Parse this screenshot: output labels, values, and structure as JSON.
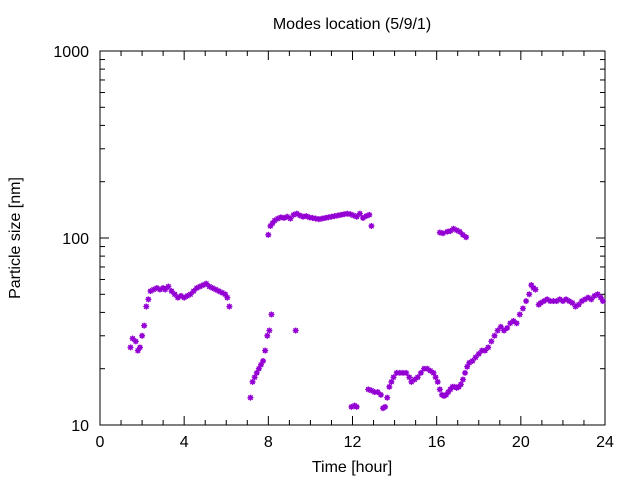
{
  "chart_data": {
    "type": "scatter",
    "title": "Modes location (5/9/1)",
    "xlabel": "Time [hour]",
    "ylabel": "Particle size [nm]",
    "xlim": [
      0,
      24
    ],
    "ylim": [
      10,
      1000
    ],
    "yscale": "log",
    "x_ticks": [
      0,
      4,
      8,
      12,
      16,
      20,
      24
    ],
    "x_tick_labels": [
      "0",
      "4",
      "8",
      "12",
      "16",
      "20",
      "24"
    ],
    "y_ticks": [
      10,
      100,
      1000
    ],
    "y_tick_labels": [
      "10",
      "100",
      "1000"
    ],
    "grid": false,
    "legend": "none",
    "marker_color": "#9400d3",
    "series": [
      {
        "points": [
          [
            1.45,
            26
          ],
          [
            1.55,
            29
          ],
          [
            1.7,
            28
          ],
          [
            1.8,
            25
          ],
          [
            1.9,
            26
          ],
          [
            2.0,
            30
          ],
          [
            2.1,
            34
          ],
          [
            2.2,
            43
          ],
          [
            2.3,
            47
          ],
          [
            2.4,
            52
          ],
          [
            2.55,
            53
          ],
          [
            2.7,
            54
          ],
          [
            2.85,
            53
          ],
          [
            3.0,
            54
          ],
          [
            3.1,
            53
          ],
          [
            3.25,
            55
          ],
          [
            3.4,
            52
          ],
          [
            3.55,
            50
          ],
          [
            3.7,
            48
          ],
          [
            3.85,
            49
          ],
          [
            4.0,
            48
          ],
          [
            4.15,
            49
          ],
          [
            4.3,
            50
          ],
          [
            4.45,
            52
          ],
          [
            4.6,
            54
          ],
          [
            4.75,
            55
          ],
          [
            4.9,
            56
          ],
          [
            5.05,
            57
          ],
          [
            5.2,
            55
          ],
          [
            5.35,
            54
          ],
          [
            5.5,
            53
          ],
          [
            5.65,
            52
          ],
          [
            5.8,
            51
          ],
          [
            5.95,
            50
          ],
          [
            6.05,
            48
          ],
          [
            6.15,
            43
          ],
          [
            7.15,
            14
          ],
          [
            7.25,
            17
          ],
          [
            7.35,
            18
          ],
          [
            7.45,
            19
          ],
          [
            7.55,
            20
          ],
          [
            7.65,
            21
          ],
          [
            7.75,
            22
          ],
          [
            7.85,
            25
          ],
          [
            7.95,
            30
          ],
          [
            8.05,
            32
          ],
          [
            8.15,
            39
          ],
          [
            9.3,
            32
          ],
          [
            8.0,
            104
          ],
          [
            8.1,
            116
          ],
          [
            8.2,
            120
          ],
          [
            8.3,
            124
          ],
          [
            8.45,
            127
          ],
          [
            8.6,
            129
          ],
          [
            8.75,
            128
          ],
          [
            8.9,
            130
          ],
          [
            9.05,
            127
          ],
          [
            9.2,
            133
          ],
          [
            9.35,
            135
          ],
          [
            9.5,
            132
          ],
          [
            9.65,
            130
          ],
          [
            9.8,
            131
          ],
          [
            9.95,
            129
          ],
          [
            10.1,
            128
          ],
          [
            10.25,
            127
          ],
          [
            10.4,
            126
          ],
          [
            10.55,
            127
          ],
          [
            10.7,
            128
          ],
          [
            10.85,
            129
          ],
          [
            11.0,
            130
          ],
          [
            11.15,
            131
          ],
          [
            11.3,
            132
          ],
          [
            11.45,
            133
          ],
          [
            11.6,
            134
          ],
          [
            11.75,
            135
          ],
          [
            11.9,
            134
          ],
          [
            12.05,
            132
          ],
          [
            12.2,
            130
          ],
          [
            12.35,
            135
          ],
          [
            12.5,
            128
          ],
          [
            12.65,
            131
          ],
          [
            12.8,
            133
          ],
          [
            12.9,
            116
          ],
          [
            11.95,
            12.5
          ],
          [
            12.1,
            12.7
          ],
          [
            12.2,
            12.5
          ],
          [
            12.75,
            15.5
          ],
          [
            12.9,
            15.3
          ],
          [
            13.05,
            15.0
          ],
          [
            13.2,
            15.0
          ],
          [
            13.35,
            14.5
          ],
          [
            13.45,
            12.3
          ],
          [
            13.55,
            12.5
          ],
          [
            13.65,
            14.0
          ],
          [
            13.75,
            16
          ],
          [
            13.85,
            17
          ],
          [
            13.95,
            18
          ],
          [
            14.1,
            19
          ],
          [
            14.25,
            19
          ],
          [
            14.4,
            19
          ],
          [
            14.55,
            19
          ],
          [
            14.7,
            18
          ],
          [
            14.8,
            17
          ],
          [
            14.95,
            17.5
          ],
          [
            15.1,
            18
          ],
          [
            15.25,
            19
          ],
          [
            15.4,
            20
          ],
          [
            15.55,
            20
          ],
          [
            15.7,
            19.5
          ],
          [
            15.85,
            19
          ],
          [
            15.95,
            18
          ],
          [
            16.05,
            17
          ],
          [
            16.15,
            15.5
          ],
          [
            16.25,
            14.5
          ],
          [
            16.35,
            14.3
          ],
          [
            16.45,
            14.5
          ],
          [
            16.55,
            15
          ],
          [
            16.65,
            15.5
          ],
          [
            16.75,
            16
          ],
          [
            16.85,
            16
          ],
          [
            16.95,
            15.8
          ],
          [
            17.05,
            16
          ],
          [
            17.15,
            16.5
          ],
          [
            17.25,
            17.5
          ],
          [
            17.35,
            19
          ],
          [
            17.45,
            20.5
          ],
          [
            17.55,
            21.5
          ],
          [
            17.7,
            22
          ],
          [
            17.85,
            23
          ],
          [
            18.0,
            24
          ],
          [
            18.15,
            25
          ],
          [
            18.3,
            25
          ],
          [
            18.45,
            26
          ],
          [
            18.6,
            28
          ],
          [
            18.75,
            30
          ],
          [
            18.9,
            32
          ],
          [
            19.05,
            33.5
          ],
          [
            19.2,
            32
          ],
          [
            19.35,
            33
          ],
          [
            19.5,
            35
          ],
          [
            19.65,
            36
          ],
          [
            19.8,
            35
          ],
          [
            19.95,
            39
          ],
          [
            20.1,
            42
          ],
          [
            20.25,
            46
          ],
          [
            20.4,
            50
          ],
          [
            20.5,
            56
          ],
          [
            20.6,
            54
          ],
          [
            20.7,
            53
          ],
          [
            20.85,
            44
          ],
          [
            20.95,
            45
          ],
          [
            21.1,
            46
          ],
          [
            21.25,
            47
          ],
          [
            21.4,
            46
          ],
          [
            21.55,
            46
          ],
          [
            21.7,
            46
          ],
          [
            21.85,
            47
          ],
          [
            22.0,
            46
          ],
          [
            22.15,
            47
          ],
          [
            22.3,
            46
          ],
          [
            22.45,
            45
          ],
          [
            22.6,
            43
          ],
          [
            22.75,
            44
          ],
          [
            22.9,
            46
          ],
          [
            23.05,
            47
          ],
          [
            23.2,
            48
          ],
          [
            23.35,
            47
          ],
          [
            23.5,
            49
          ],
          [
            23.65,
            50
          ],
          [
            23.8,
            48
          ],
          [
            23.9,
            46
          ],
          [
            16.15,
            107
          ],
          [
            16.3,
            106
          ],
          [
            16.5,
            108
          ],
          [
            16.65,
            109
          ],
          [
            16.8,
            112
          ],
          [
            16.95,
            110
          ],
          [
            17.1,
            108
          ],
          [
            17.25,
            104
          ],
          [
            17.4,
            101
          ]
        ]
      }
    ]
  }
}
